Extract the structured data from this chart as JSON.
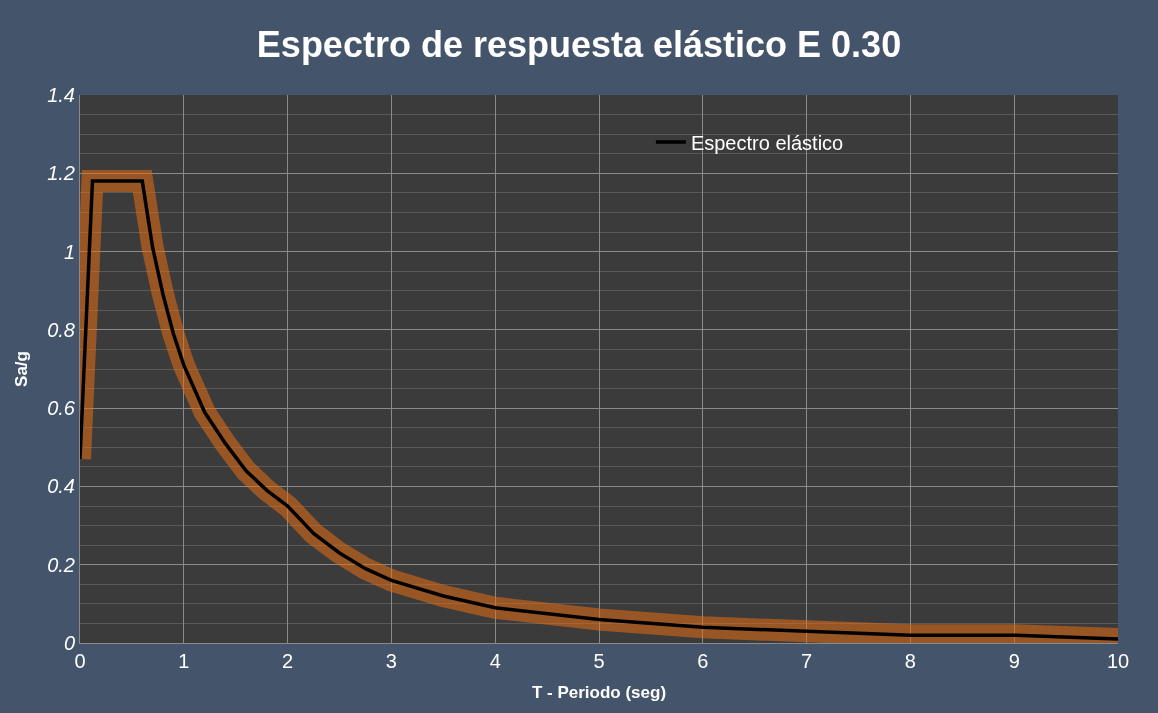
{
  "chart_data": {
    "type": "line",
    "title": "Espectro de respuesta elástico E 0.30",
    "xlabel": "T - Periodo (seg)",
    "ylabel": "Sa/g",
    "x": [
      0,
      0.12,
      0.6,
      0.7,
      0.8,
      0.9,
      1.0,
      1.2,
      1.4,
      1.6,
      1.8,
      2.0,
      2.25,
      2.5,
      2.75,
      3,
      3.5,
      4,
      5,
      6,
      7,
      8,
      9,
      10
    ],
    "series": [
      {
        "name": "Espectro elástico",
        "color": "#000000",
        "values": [
          0.47,
          1.18,
          1.18,
          1.01,
          0.89,
          0.79,
          0.71,
          0.59,
          0.51,
          0.44,
          0.39,
          0.35,
          0.28,
          0.23,
          0.19,
          0.16,
          0.12,
          0.09,
          0.06,
          0.04,
          0.03,
          0.02,
          0.02,
          0.01
        ]
      }
    ],
    "xlim": [
      0,
      10
    ],
    "xticks": [
      0,
      1,
      2,
      3,
      4,
      5,
      6,
      7,
      8,
      9,
      10
    ],
    "ylim": [
      0,
      1.4
    ],
    "yticks": [
      0,
      0.2,
      0.4,
      0.6,
      0.8,
      1,
      1.2,
      1.4
    ],
    "grid": true,
    "legend": "top right",
    "marker": "none",
    "line_style": "solid"
  }
}
